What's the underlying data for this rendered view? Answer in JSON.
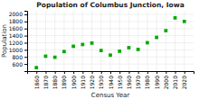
{
  "chart_data": {
    "type": "scatter",
    "title": "Population of Columbus Junction, Iowa",
    "xlabel": "Census Year",
    "ylabel": "Population",
    "x": [
      1860,
      1870,
      1880,
      1890,
      1900,
      1910,
      1920,
      1930,
      1940,
      1950,
      1960,
      1970,
      1980,
      1990,
      2000,
      2010,
      2020
    ],
    "values": [
      497,
      820,
      790,
      950,
      1100,
      1150,
      1190,
      980,
      850,
      960,
      1060,
      1010,
      1200,
      1350,
      1540,
      1900,
      1800
    ],
    "color": "#00aa00",
    "marker": "square",
    "xlim": [
      1850,
      2030
    ],
    "xticks": [
      1860,
      1870,
      1880,
      1890,
      1900,
      1910,
      1920,
      1930,
      1940,
      1950,
      1960,
      1970,
      1980,
      1990,
      2000,
      2010,
      2020
    ],
    "ylim": [
      400,
      2100
    ],
    "yticks": [
      600,
      800,
      1000,
      1200,
      1400,
      1600,
      1800,
      2000
    ],
    "grid": true
  }
}
